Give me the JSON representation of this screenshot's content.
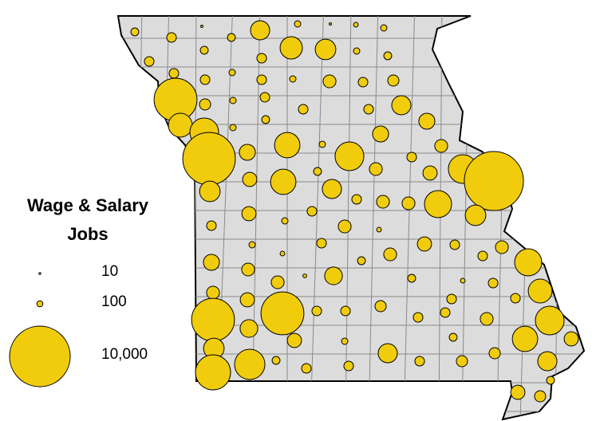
{
  "chart_data": {
    "type": "bubble-map",
    "legend_title": [
      "Wage & Salary",
      "Jobs"
    ],
    "legend": [
      10,
      100,
      {
        "value": 10000,
        "label": "10,000"
      }
    ],
    "color": "#f0cc0c",
    "circles": [
      170,
      250,
      15,
      170,
      1000,
      110,
      15,
      60,
      110,
      250,
      170,
      250,
      1350,
      1150,
      110,
      170,
      250,
      250,
      110,
      250,
      110,
      450,
      250,
      340,
      5000,
      340,
      110,
      250,
      250,
      250,
      1000,
      1550,
      2250,
      110,
      170,
      700,
      700,
      7500,
      700,
      1750,
      110,
      2250,
      250,
      450,
      2250,
      9500,
      550,
      1750,
      170,
      450,
      550,
      1150,
      1000,
      250,
      450,
      450,
      2000,
      1150,
      550,
      110,
      250,
      250,
      450,
      60,
      550,
      250,
      110,
      60,
      250,
      170,
      450,
      250,
      450,
      2000,
      700,
      40,
      850,
      170,
      60,
      250,
      450,
      450,
      1550,
      450,
      550,
      250,
      250,
      5000,
      5000,
      250,
      250,
      340,
      250,
      250,
      450,
      2250,
      850,
      550,
      110,
      170,
      1750,
      550,
      1150,
      1000,
      340,
      1000,
      170,
      250,
      340,
      250,
      2500,
      3350,
      250,
      550,
      340,
      170
    ]
  }
}
